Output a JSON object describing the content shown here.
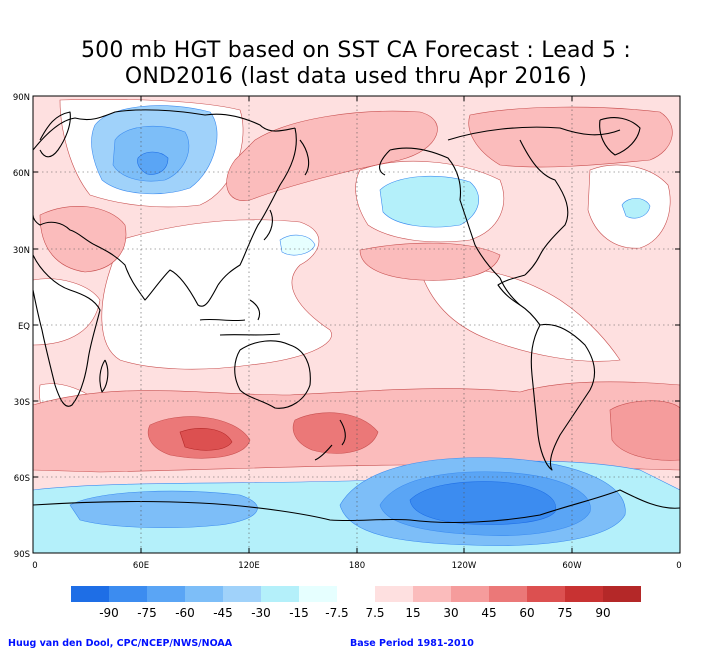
{
  "title": {
    "line1": "500 mb HGT based on SST CA Forecast : Lead 5 :",
    "line2": "OND2016 (last data used thru Apr 2016 )"
  },
  "map": {
    "lat_labels": [
      "90N",
      "60N",
      "30N",
      "EQ",
      "30S",
      "60S",
      "90S"
    ],
    "lon_labels": [
      "0",
      "60E",
      "120E",
      "180",
      "120W",
      "60W",
      "0"
    ],
    "grid": "dotted",
    "projection": "cylindrical equidistant"
  },
  "colorbar": {
    "labels": [
      "-90",
      "-75",
      "-60",
      "-45",
      "-30",
      "-15",
      "-7.5",
      "7.5",
      "15",
      "30",
      "45",
      "60",
      "75",
      "90"
    ],
    "colors": [
      "#1e6ee6",
      "#3c8cf0",
      "#5aa5f5",
      "#7dbef8",
      "#a0d2fa",
      "#b4f0fa",
      "#e6ffff",
      "#ffffff",
      "#fee0e0",
      "#fbbcbc",
      "#f59c9c",
      "#eb7878",
      "#dc5050",
      "#c83232",
      "#b42828"
    ]
  },
  "footer": {
    "left": "Huug van den Dool, CPC/NCEP/NWS/NOAA",
    "right": "Base Period 1981-2010"
  }
}
